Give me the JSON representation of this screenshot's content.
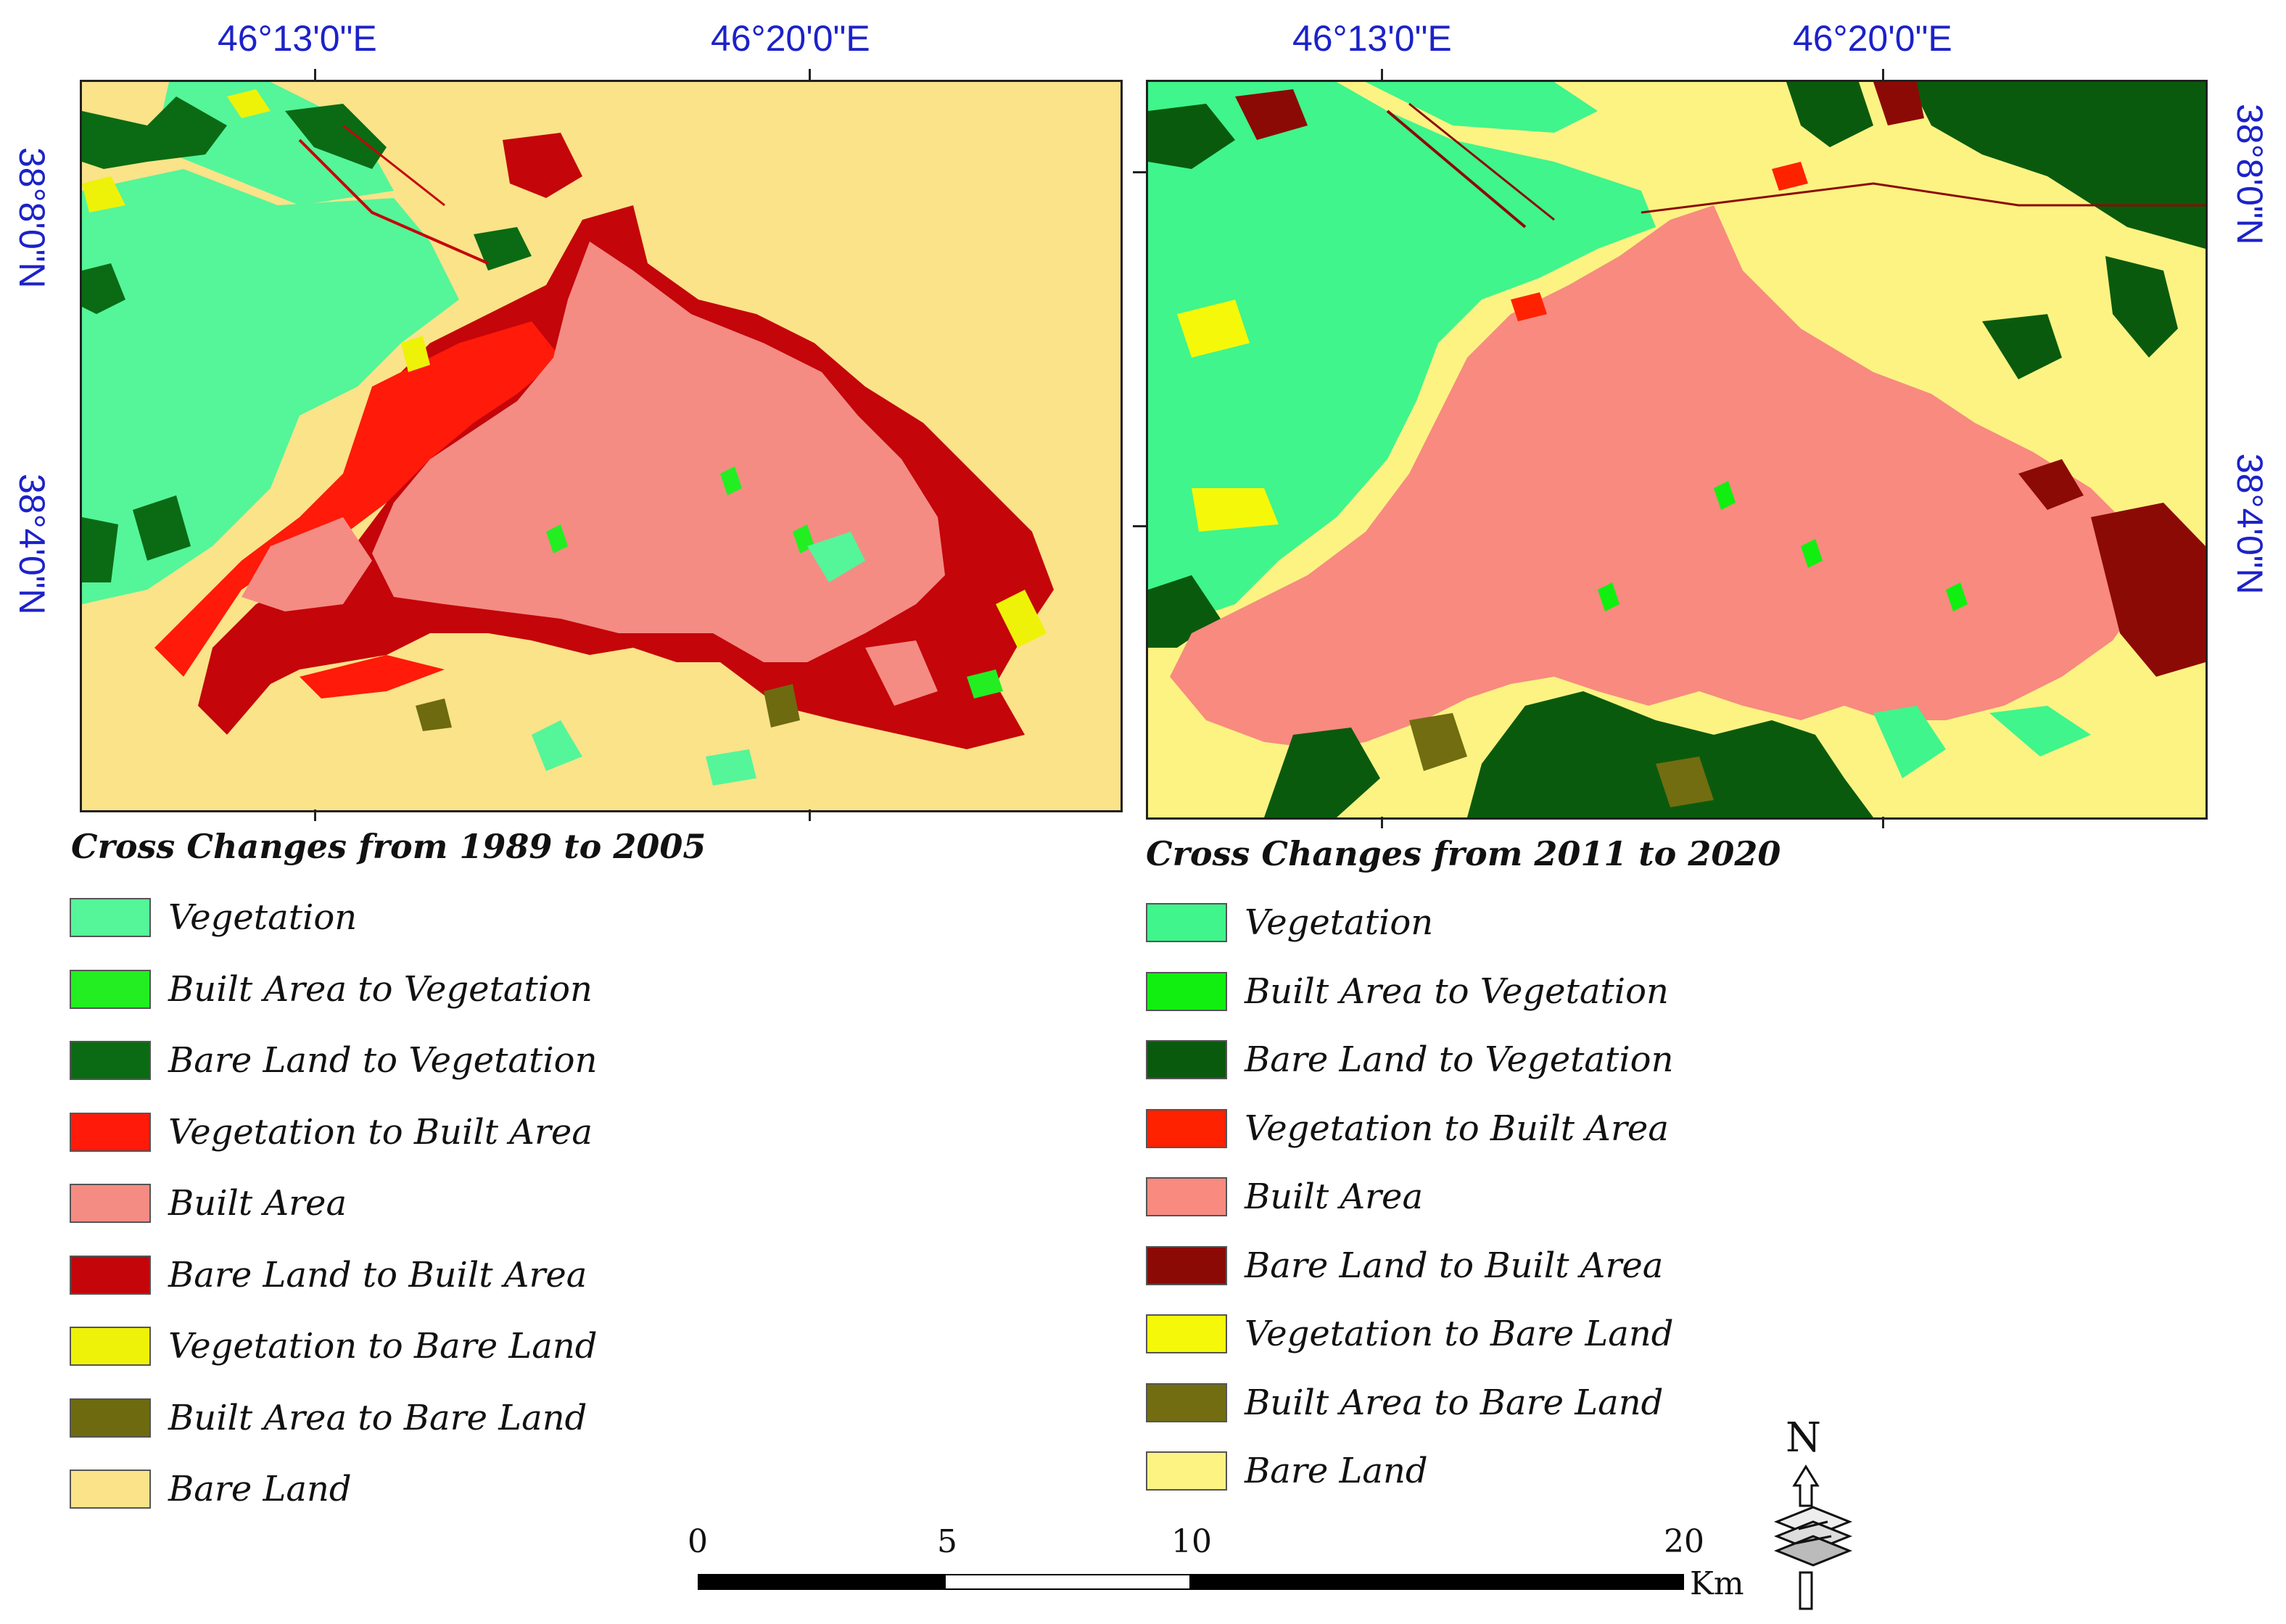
{
  "left_map": {
    "top_labels": [
      "46°13'0\"E",
      "46°20'0\"E"
    ],
    "left_labels": [
      "38°8'0\"N",
      "38°4'0\"N"
    ],
    "legend_title": "Cross Changes from 1989 to 2005",
    "legend": [
      {
        "label": "Vegetation",
        "color": "#55f59a"
      },
      {
        "label": "Built Area to Vegetation",
        "color": "#22ee22"
      },
      {
        "label": "Bare Land to Vegetation",
        "color": "#0a6b14"
      },
      {
        "label": "Vegetation to Built Area",
        "color": "#ff1a0a"
      },
      {
        "label": "Built Area",
        "color": "#f48c84"
      },
      {
        "label": "Bare Land to Built Area",
        "color": "#c4050a"
      },
      {
        "label": "Vegetation to Bare Land",
        "color": "#eef208"
      },
      {
        "label": "Built Area to Bare Land",
        "color": "#6d6a10"
      },
      {
        "label": "Bare Land",
        "color": "#fae389"
      }
    ]
  },
  "right_map": {
    "top_labels": [
      "46°13'0\"E",
      "46°20'0\"E"
    ],
    "right_labels": [
      "38°8'0\"N",
      "38°4'0\"N"
    ],
    "legend_title": "Cross Changes from 2011 to 2020",
    "legend": [
      {
        "label": "Vegetation",
        "color": "#3ff58c"
      },
      {
        "label": "Built Area to Vegetation",
        "color": "#11ef11"
      },
      {
        "label": "Bare Land to Vegetation",
        "color": "#0a5a0e"
      },
      {
        "label": "Vegetation to Built Area",
        "color": "#ff2200"
      },
      {
        "label": "Built Area",
        "color": "#f88a80"
      },
      {
        "label": "Bare Land to Built Area",
        "color": "#8c0a06"
      },
      {
        "label": "Vegetation to Bare Land",
        "color": "#f6f80a"
      },
      {
        "label": "Built Area to Bare Land",
        "color": "#716d10"
      },
      {
        "label": "Bare Land",
        "color": "#fcf383"
      }
    ]
  },
  "scale_bar": {
    "labels": [
      "0",
      "5",
      "10",
      "20"
    ],
    "unit": "Km"
  },
  "north_arrow": {
    "label": "N"
  }
}
